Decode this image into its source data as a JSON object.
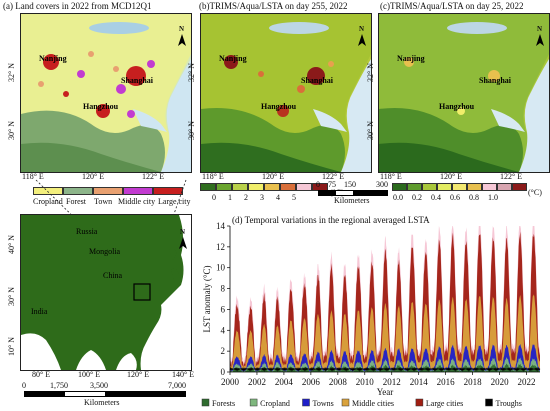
{
  "panels": {
    "a": {
      "title": "(a) Land covers in 2022 from MCD12Q1",
      "legend": [
        "Cropland",
        "Forest",
        "Town",
        "Middle city",
        "Large city"
      ],
      "legend_colors": [
        "#f3ef7d",
        "#8db58a",
        "#e8a070",
        "#c23bd0",
        "#c71f1f"
      ],
      "lon_ticks": [
        "118° E",
        "120° E",
        "122° E"
      ],
      "lat_ticks": [
        "32° N",
        "30° N"
      ],
      "cities": [
        "Nanjing",
        "Shanghai",
        "Hangzhou"
      ]
    },
    "b": {
      "title": "(b)TRIMS/Aqua/LSTA on day 255, 2022",
      "legend_ticks": [
        "0",
        "1",
        "2",
        "3",
        "4",
        "5",
        "(°C)"
      ],
      "lon_ticks": [
        "118° E",
        "120° E",
        "122° E"
      ],
      "lat_ticks": [
        "32° N",
        "30° N"
      ],
      "cities": [
        "Nanjing",
        "Shanghai",
        "Hangzhou"
      ],
      "scale_ticks": [
        "0",
        "75",
        "150",
        "300"
      ],
      "scale_unit": "Kilometers"
    },
    "c": {
      "title": "(c)TRIMS/Aqua/LSTA on day 25, 2022",
      "legend_ticks": [
        "0.0",
        "0.2",
        "0.4",
        "0.6",
        "0.8",
        "1.0",
        "(°C)"
      ],
      "lon_ticks": [
        "118° E",
        "120° E",
        "122° E"
      ],
      "lat_ticks": [
        "32° N",
        "30° N"
      ],
      "cities": [
        "Nanjing",
        "Shanghai",
        "Hangzhou"
      ]
    },
    "overview": {
      "countries": [
        "Russia",
        "Mongolia",
        "China",
        "India"
      ],
      "lon_ticks": [
        "80° E",
        "100° E",
        "120° E",
        "140° E"
      ],
      "lat_ticks": [
        "40° N",
        "30° N",
        "10° N"
      ],
      "scale_ticks": [
        "0",
        "1,750",
        "3,500",
        "7,000"
      ],
      "scale_unit": "Kilometers"
    },
    "d": {
      "title": "(d) Temporal variations in the regional averaged LSTA"
    }
  },
  "north_label": "N",
  "chart_data": {
    "type": "area",
    "title": "(d) Temporal variations in the regional averaged LSTA",
    "xlabel": "Year",
    "ylabel": "LST anomaly (°C)",
    "xlim": [
      2000,
      2023
    ],
    "ylim": [
      0,
      14
    ],
    "x_ticks": [
      "2000",
      "2002",
      "2004",
      "2006",
      "2008",
      "2010",
      "2012",
      "2014",
      "2016",
      "2018",
      "2020",
      "2022"
    ],
    "y_ticks": [
      "0",
      "2",
      "4",
      "6",
      "8",
      "10",
      "12",
      "14"
    ],
    "legend_placement": "bottom",
    "series": [
      {
        "name": "Forests",
        "color": "#2e6b2e"
      },
      {
        "name": "Cropland",
        "color": "#7fb77e"
      },
      {
        "name": "Towns",
        "color": "#1f1fc9"
      },
      {
        "name": "Middle cities",
        "color": "#d9a23c"
      },
      {
        "name": "Large cities",
        "color": "#a01e12"
      },
      {
        "name": "Troughs",
        "color": "#000000"
      }
    ],
    "summer_peaks": {
      "years": [
        2000,
        2001,
        2002,
        2003,
        2004,
        2005,
        2006,
        2007,
        2008,
        2009,
        2010,
        2011,
        2012,
        2013,
        2014,
        2015,
        2016,
        2017,
        2018,
        2019,
        2020,
        2021,
        2022
      ],
      "Large cities": [
        6.5,
        6.3,
        7.2,
        7.0,
        8.0,
        8.5,
        9.2,
        10.0,
        9.3,
        10.3,
        10.5,
        11.5,
        10.5,
        12.2,
        11.6,
        12.5,
        13.0,
        12.5,
        13.5,
        12.8,
        12.6,
        13.2,
        13.4
      ],
      "Middle cities": [
        4.0,
        4.0,
        4.5,
        4.4,
        5.0,
        5.2,
        5.5,
        5.8,
        5.6,
        6.0,
        6.2,
        6.5,
        6.3,
        6.8,
        6.6,
        6.9,
        7.1,
        7.0,
        7.4,
        7.2,
        7.0,
        7.3,
        7.5
      ],
      "Towns": [
        1.5,
        1.5,
        1.6,
        1.6,
        1.7,
        1.8,
        1.9,
        2.0,
        2.0,
        2.1,
        2.1,
        2.2,
        2.2,
        2.3,
        2.3,
        2.4,
        2.5,
        2.5,
        2.6,
        2.6,
        2.5,
        2.6,
        2.7
      ],
      "Cropland": [
        0.8,
        0.8,
        0.8,
        0.9,
        0.9,
        0.9,
        1.0,
        1.0,
        1.0,
        1.0,
        1.1,
        1.1,
        1.1,
        1.1,
        1.2,
        1.2,
        1.2,
        1.2,
        1.3,
        1.3,
        1.3,
        1.3,
        1.3
      ],
      "Forests": [
        0.4,
        0.4,
        0.4,
        0.4,
        0.5,
        0.5,
        0.5,
        0.5,
        0.5,
        0.5,
        0.6,
        0.6,
        0.6,
        0.6,
        0.6,
        0.6,
        0.6,
        0.6,
        0.7,
        0.7,
        0.7,
        0.7,
        0.7
      ]
    }
  }
}
